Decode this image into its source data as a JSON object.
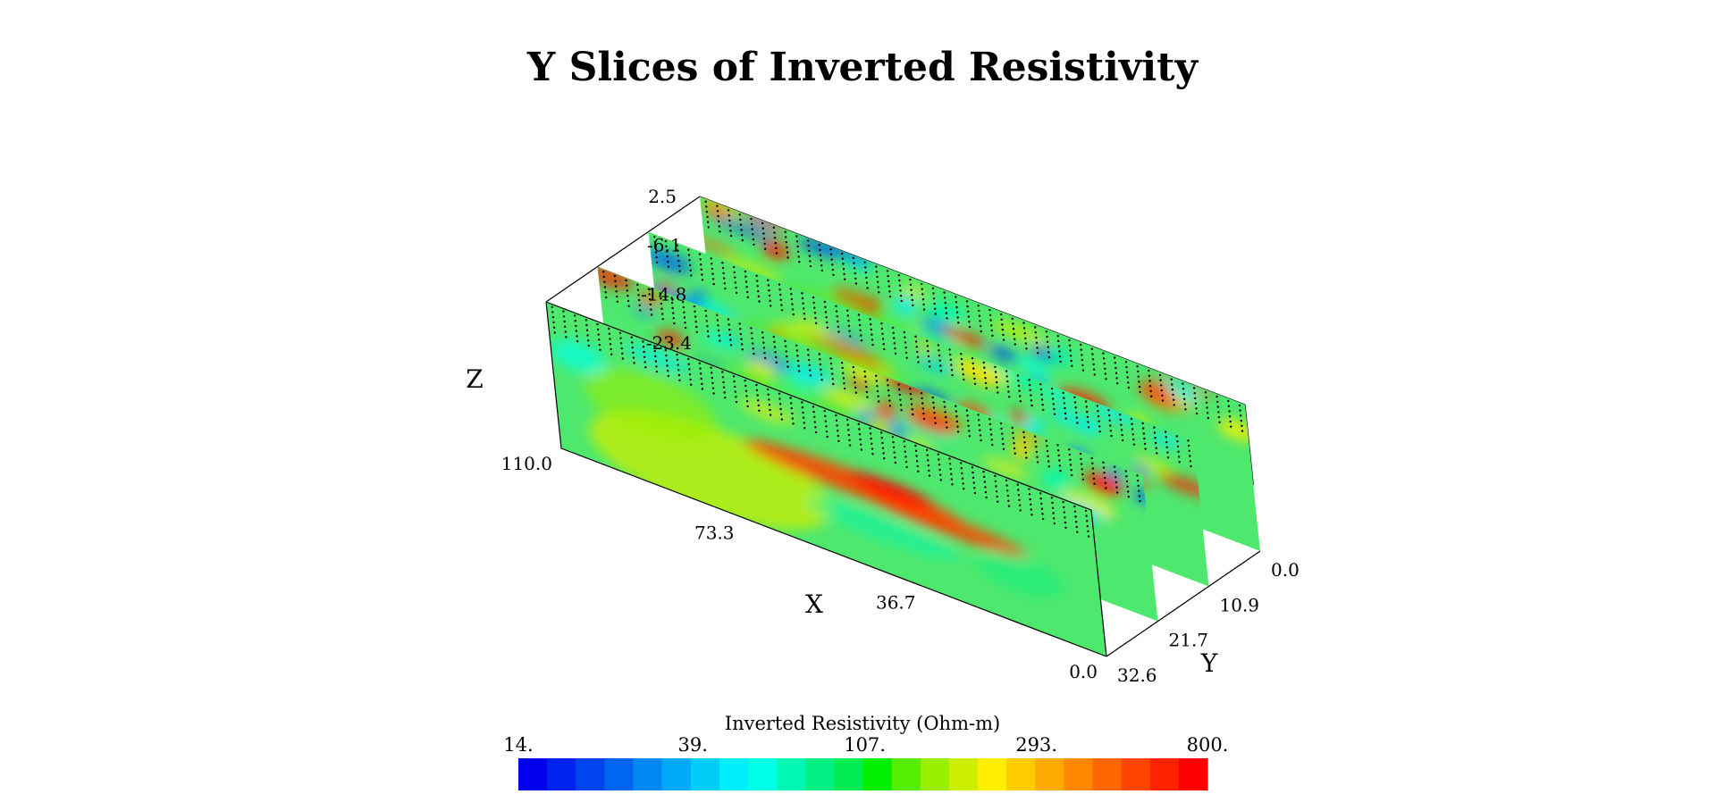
{
  "chart_data": {
    "type": "heatmap",
    "subtype": "3d-slices",
    "title": "Y Slices of Inverted Resistivity",
    "x_axis": {
      "label": "X",
      "ticks": [
        "110.0",
        "73.3",
        "36.7",
        "0.0"
      ],
      "range": [
        0,
        110
      ]
    },
    "y_axis": {
      "label": "Y",
      "ticks": [
        "0.0",
        "10.9",
        "21.7",
        "32.6"
      ],
      "range": [
        0,
        32.6
      ]
    },
    "z_axis": {
      "label": "Z",
      "ticks": [
        "2.5",
        "-6.1",
        "-14.8",
        "-23.4"
      ],
      "range": [
        -23.4,
        2.5
      ]
    },
    "slices": [
      {
        "y": 0.0
      },
      {
        "y": 10.9
      },
      {
        "y": 21.7
      },
      {
        "y": 32.6
      }
    ],
    "colorbar": {
      "label": "Inverted Resistivity (Ohm-m)",
      "scale": "log",
      "range": [
        14,
        800
      ],
      "tick_labels": [
        "14.",
        "39.",
        "107.",
        "293.",
        "800."
      ],
      "colors": [
        "#0000ee",
        "#0022ee",
        "#0044f0",
        "#0066f2",
        "#0088f4",
        "#00aaf6",
        "#00ccf8",
        "#00eefa",
        "#00ffe6",
        "#00f7b4",
        "#00ef82",
        "#00ec50",
        "#00ee00",
        "#55ee00",
        "#99ee00",
        "#ccee00",
        "#ffee00",
        "#ffcc00",
        "#ffaa00",
        "#ff8800",
        "#ff6600",
        "#ff4400",
        "#ff2200",
        "#ff0000"
      ]
    },
    "grid": false,
    "legend": "bottom"
  }
}
